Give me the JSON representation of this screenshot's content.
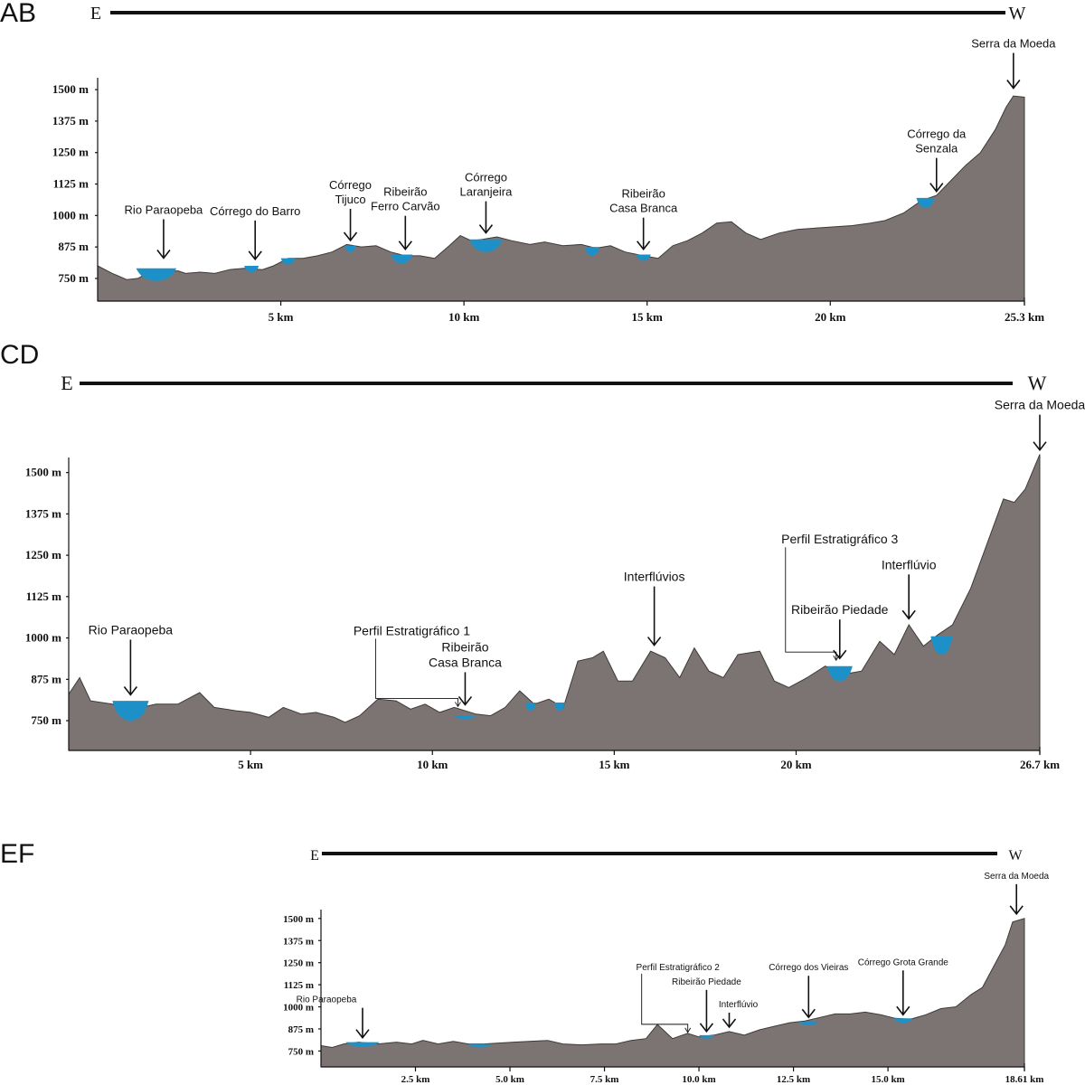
{
  "chart_data": [
    {
      "type": "area",
      "panel": "AB",
      "direction": {
        "left": "E",
        "right": "W"
      },
      "yticks": [
        "750 m",
        "875 m",
        "1000 m",
        "1125 m",
        "1250 m",
        "1375 m",
        "1500 m"
      ],
      "ytick_values": [
        750,
        875,
        1000,
        1125,
        1250,
        1375,
        1500
      ],
      "xticks": [
        "5 km",
        "10 km",
        "15 km",
        "20 km",
        "25.3 km"
      ],
      "xtick_values": [
        5,
        10,
        15,
        20,
        25.3
      ],
      "xlim": [
        0,
        25.3
      ],
      "ylim": [
        660,
        1540
      ],
      "profile": [
        [
          0,
          800
        ],
        [
          0.4,
          770
        ],
        [
          0.8,
          745
        ],
        [
          1.1,
          750
        ],
        [
          1.4,
          775
        ],
        [
          1.6,
          780
        ],
        [
          2.2,
          780
        ],
        [
          2.4,
          770
        ],
        [
          2.8,
          775
        ],
        [
          3.2,
          770
        ],
        [
          3.6,
          785
        ],
        [
          4.0,
          790
        ],
        [
          4.5,
          785
        ],
        [
          4.8,
          800
        ],
        [
          5.2,
          830
        ],
        [
          5.6,
          830
        ],
        [
          6.0,
          840
        ],
        [
          6.4,
          855
        ],
        [
          6.8,
          885
        ],
        [
          7.2,
          875
        ],
        [
          7.6,
          880
        ],
        [
          8.0,
          855
        ],
        [
          8.4,
          840
        ],
        [
          8.8,
          840
        ],
        [
          9.2,
          830
        ],
        [
          9.6,
          880
        ],
        [
          9.9,
          920
        ],
        [
          10.2,
          900
        ],
        [
          10.5,
          905
        ],
        [
          10.9,
          915
        ],
        [
          11.3,
          900
        ],
        [
          11.8,
          885
        ],
        [
          12.2,
          895
        ],
        [
          12.7,
          880
        ],
        [
          13.2,
          885
        ],
        [
          13.6,
          870
        ],
        [
          14.0,
          880
        ],
        [
          14.4,
          855
        ],
        [
          14.9,
          840
        ],
        [
          15.3,
          830
        ],
        [
          15.7,
          880
        ],
        [
          16.1,
          900
        ],
        [
          16.5,
          930
        ],
        [
          16.9,
          970
        ],
        [
          17.3,
          975
        ],
        [
          17.7,
          930
        ],
        [
          18.1,
          905
        ],
        [
          18.6,
          930
        ],
        [
          19.1,
          945
        ],
        [
          19.6,
          950
        ],
        [
          20.1,
          955
        ],
        [
          20.6,
          960
        ],
        [
          21.1,
          970
        ],
        [
          21.5,
          980
        ],
        [
          22.0,
          1010
        ],
        [
          22.5,
          1060
        ],
        [
          22.9,
          1080
        ],
        [
          23.3,
          1140
        ],
        [
          23.7,
          1200
        ],
        [
          24.1,
          1250
        ],
        [
          24.5,
          1340
        ],
        [
          24.8,
          1430
        ],
        [
          25.0,
          1475
        ],
        [
          25.3,
          1470
        ]
      ],
      "channels": [
        {
          "x": 1.6,
          "w": 1.1,
          "top": 790,
          "depth": 50
        },
        {
          "x": 4.2,
          "w": 0.4,
          "top": 800,
          "depth": 25
        },
        {
          "x": 5.2,
          "w": 0.4,
          "top": 830,
          "depth": 25
        },
        {
          "x": 6.9,
          "w": 0.3,
          "top": 880,
          "depth": 25
        },
        {
          "x": 8.3,
          "w": 0.6,
          "top": 845,
          "depth": 35
        },
        {
          "x": 10.6,
          "w": 0.9,
          "top": 905,
          "depth": 50
        },
        {
          "x": 13.5,
          "w": 0.4,
          "top": 875,
          "depth": 35
        },
        {
          "x": 14.9,
          "w": 0.4,
          "top": 845,
          "depth": 25
        },
        {
          "x": 22.6,
          "w": 0.5,
          "top": 1070,
          "depth": 40
        }
      ],
      "annotations": [
        {
          "lines": [
            "Rio Paraopeba"
          ],
          "x": 1.8,
          "y": 820
        },
        {
          "lines": [
            "Córrego do Barro"
          ],
          "x": 4.3,
          "y": 815
        },
        {
          "lines": [
            "Córrego",
            "Tijuco"
          ],
          "x": 6.9,
          "y": 890
        },
        {
          "lines": [
            "Ribeirão",
            "Ferro Carvão"
          ],
          "x": 8.4,
          "y": 855
        },
        {
          "lines": [
            "Córrego",
            "Laranjeira"
          ],
          "x": 10.6,
          "y": 920
        },
        {
          "lines": [
            "Ribeirão",
            "Casa Branca"
          ],
          "x": 14.9,
          "y": 855
        },
        {
          "lines": [
            "Córrego da",
            "Senzala"
          ],
          "x": 22.9,
          "y": 1085
        },
        {
          "lines": [
            "Serra da Moeda"
          ],
          "x": 25.0,
          "y": 1495
        }
      ]
    },
    {
      "type": "area",
      "panel": "CD",
      "direction": {
        "left": "E",
        "right": "W"
      },
      "yticks": [
        "750 m",
        "875 m",
        "1000 m",
        "1125 m",
        "1250 m",
        "1375 m",
        "1500 m"
      ],
      "ytick_values": [
        750,
        875,
        1000,
        1125,
        1250,
        1375,
        1500
      ],
      "xticks": [
        "5 km",
        "10 km",
        "15 km",
        "20 km",
        "26.7 km"
      ],
      "xtick_values": [
        5,
        10,
        15,
        20,
        26.7
      ],
      "xlim": [
        0,
        26.7
      ],
      "ylim": [
        660,
        1540
      ],
      "profile": [
        [
          0,
          830
        ],
        [
          0.3,
          880
        ],
        [
          0.6,
          810
        ],
        [
          1.2,
          800
        ],
        [
          1.6,
          790
        ],
        [
          2.0,
          790
        ],
        [
          2.4,
          800
        ],
        [
          3.0,
          800
        ],
        [
          3.6,
          835
        ],
        [
          4.0,
          790
        ],
        [
          4.6,
          780
        ],
        [
          5.0,
          775
        ],
        [
          5.5,
          760
        ],
        [
          5.9,
          790
        ],
        [
          6.4,
          770
        ],
        [
          6.8,
          775
        ],
        [
          7.3,
          760
        ],
        [
          7.6,
          745
        ],
        [
          8.0,
          765
        ],
        [
          8.5,
          815
        ],
        [
          9.0,
          810
        ],
        [
          9.4,
          785
        ],
        [
          9.8,
          800
        ],
        [
          10.2,
          775
        ],
        [
          10.6,
          790
        ],
        [
          11.2,
          770
        ],
        [
          11.6,
          765
        ],
        [
          12.0,
          790
        ],
        [
          12.4,
          840
        ],
        [
          12.8,
          800
        ],
        [
          13.2,
          815
        ],
        [
          13.6,
          790
        ],
        [
          14.0,
          930
        ],
        [
          14.4,
          940
        ],
        [
          14.7,
          960
        ],
        [
          15.1,
          870
        ],
        [
          15.5,
          870
        ],
        [
          16.0,
          960
        ],
        [
          16.4,
          940
        ],
        [
          16.8,
          880
        ],
        [
          17.2,
          970
        ],
        [
          17.6,
          900
        ],
        [
          18.0,
          880
        ],
        [
          18.4,
          950
        ],
        [
          19.0,
          960
        ],
        [
          19.4,
          870
        ],
        [
          19.8,
          850
        ],
        [
          20.3,
          880
        ],
        [
          20.8,
          915
        ],
        [
          21.3,
          890
        ],
        [
          21.8,
          900
        ],
        [
          22.3,
          990
        ],
        [
          22.7,
          950
        ],
        [
          23.1,
          1040
        ],
        [
          23.5,
          975
        ],
        [
          23.9,
          1010
        ],
        [
          24.3,
          1040
        ],
        [
          24.8,
          1150
        ],
        [
          25.2,
          1270
        ],
        [
          25.7,
          1420
        ],
        [
          26.0,
          1410
        ],
        [
          26.3,
          1450
        ],
        [
          26.7,
          1555
        ]
      ],
      "channels": [
        {
          "x": 1.7,
          "w": 1.0,
          "top": 810,
          "depth": 60
        },
        {
          "x": 10.9,
          "w": 0.6,
          "top": 765,
          "depth": 10
        },
        {
          "x": 12.7,
          "w": 0.3,
          "top": 805,
          "depth": 25
        },
        {
          "x": 13.5,
          "w": 0.3,
          "top": 805,
          "depth": 25
        },
        {
          "x": 21.2,
          "w": 0.7,
          "top": 915,
          "depth": 45
        },
        {
          "x": 24.0,
          "w": 0.6,
          "top": 1005,
          "depth": 55
        }
      ],
      "annotations": [
        {
          "lines": [
            "Rio Paraopeba"
          ],
          "x": 1.7,
          "y": 820
        },
        {
          "lines": [
            "Perfil Estratigráfico 1"
          ],
          "x": 10.8,
          "y": 790
        },
        {
          "lines": [
            "Ribeirão",
            "Casa Branca"
          ],
          "x": 10.9,
          "y": 790
        },
        {
          "lines": [
            "Interflúvios"
          ],
          "x": 16.1,
          "y": 970
        },
        {
          "lines": [
            "Perfil Estratigráfico 3"
          ],
          "x": 21.2,
          "y": 930
        },
        {
          "lines": [
            "Ribeirão Piedade"
          ],
          "x": 21.2,
          "y": 930
        },
        {
          "lines": [
            "Interflúvio"
          ],
          "x": 23.1,
          "y": 1050
        },
        {
          "lines": [
            "Serra da Moeda"
          ],
          "x": 26.7,
          "y": 1560
        }
      ]
    },
    {
      "type": "area",
      "panel": "EF",
      "direction": {
        "left": "E",
        "right": "W"
      },
      "yticks": [
        "750 m",
        "875 m",
        "1000 m",
        "1125 m",
        "1250 m",
        "1375 m",
        "1500 m"
      ],
      "ytick_values": [
        750,
        875,
        1000,
        1125,
        1250,
        1375,
        1500
      ],
      "xticks": [
        "2.5 km",
        "5.0 km",
        "7.5 km",
        "10.0 km",
        "12.5 km",
        "15.0 km",
        "18.61 km"
      ],
      "xtick_values": [
        2.5,
        5.0,
        7.5,
        10.0,
        12.5,
        15.0,
        18.61
      ],
      "xlim": [
        0,
        18.61
      ],
      "ylim": [
        660,
        1540
      ],
      "profile": [
        [
          0,
          780
        ],
        [
          0.3,
          770
        ],
        [
          0.6,
          790
        ],
        [
          1.0,
          800
        ],
        [
          1.5,
          790
        ],
        [
          2.0,
          800
        ],
        [
          2.4,
          790
        ],
        [
          2.7,
          810
        ],
        [
          3.1,
          790
        ],
        [
          3.5,
          805
        ],
        [
          3.9,
          790
        ],
        [
          4.3,
          790
        ],
        [
          4.7,
          795
        ],
        [
          5.1,
          800
        ],
        [
          5.5,
          805
        ],
        [
          6.0,
          810
        ],
        [
          6.4,
          790
        ],
        [
          6.9,
          785
        ],
        [
          7.4,
          790
        ],
        [
          7.8,
          790
        ],
        [
          8.2,
          810
        ],
        [
          8.6,
          820
        ],
        [
          8.9,
          900
        ],
        [
          9.3,
          820
        ],
        [
          9.7,
          850
        ],
        [
          10.0,
          830
        ],
        [
          10.4,
          840
        ],
        [
          10.8,
          860
        ],
        [
          11.2,
          840
        ],
        [
          11.6,
          870
        ],
        [
          12.0,
          890
        ],
        [
          12.4,
          910
        ],
        [
          12.8,
          920
        ],
        [
          13.2,
          940
        ],
        [
          13.6,
          960
        ],
        [
          14.0,
          960
        ],
        [
          14.4,
          970
        ],
        [
          14.8,
          955
        ],
        [
          15.2,
          935
        ],
        [
          15.6,
          930
        ],
        [
          16.0,
          955
        ],
        [
          16.4,
          990
        ],
        [
          16.8,
          1000
        ],
        [
          17.2,
          1070
        ],
        [
          17.5,
          1110
        ],
        [
          17.8,
          1230
        ],
        [
          18.1,
          1350
        ],
        [
          18.3,
          1480
        ],
        [
          18.61,
          1500
        ]
      ],
      "channels": [
        {
          "x": 1.1,
          "w": 0.9,
          "top": 800,
          "depth": 25
        },
        {
          "x": 4.2,
          "w": 0.6,
          "top": 790,
          "depth": 20
        },
        {
          "x": 10.2,
          "w": 0.4,
          "top": 840,
          "depth": 20
        },
        {
          "x": 12.9,
          "w": 0.5,
          "top": 915,
          "depth": 20
        },
        {
          "x": 15.4,
          "w": 0.5,
          "top": 935,
          "depth": 25
        }
      ],
      "annotations": [
        {
          "lines": [
            "Rio Paraopeba"
          ],
          "x": 1.1,
          "y": 810
        },
        {
          "lines": [
            "Perfil Estratigráfico 2"
          ],
          "x": 9.8,
          "y": 850
        },
        {
          "lines": [
            "Ribeirão Piedade"
          ],
          "x": 10.2,
          "y": 845
        },
        {
          "lines": [
            "Interflúvio"
          ],
          "x": 10.8,
          "y": 870
        },
        {
          "lines": [
            "Córrego dos Vieiras"
          ],
          "x": 12.9,
          "y": 925
        },
        {
          "lines": [
            "Córrego Grota Grande"
          ],
          "x": 15.4,
          "y": 940
        },
        {
          "lines": [
            "Serra da Moeda"
          ],
          "x": 18.4,
          "y": 1510
        }
      ]
    }
  ]
}
